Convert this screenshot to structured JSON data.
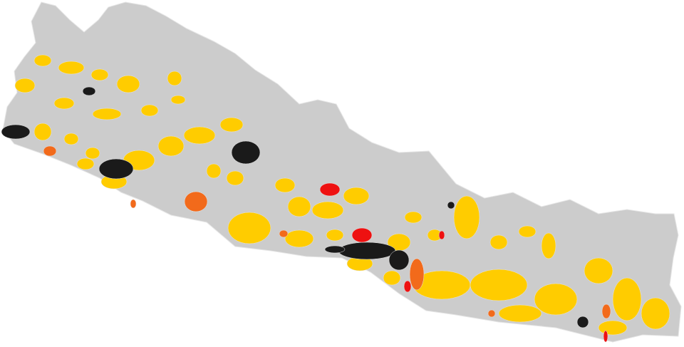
{
  "map": {
    "colors": {
      "base": "#cccccc",
      "border": "#e6e6e6",
      "yellow": "#ffcc00",
      "orange": "#f26a1b",
      "red": "#ee1111",
      "black": "#1a1a1a"
    }
  }
}
